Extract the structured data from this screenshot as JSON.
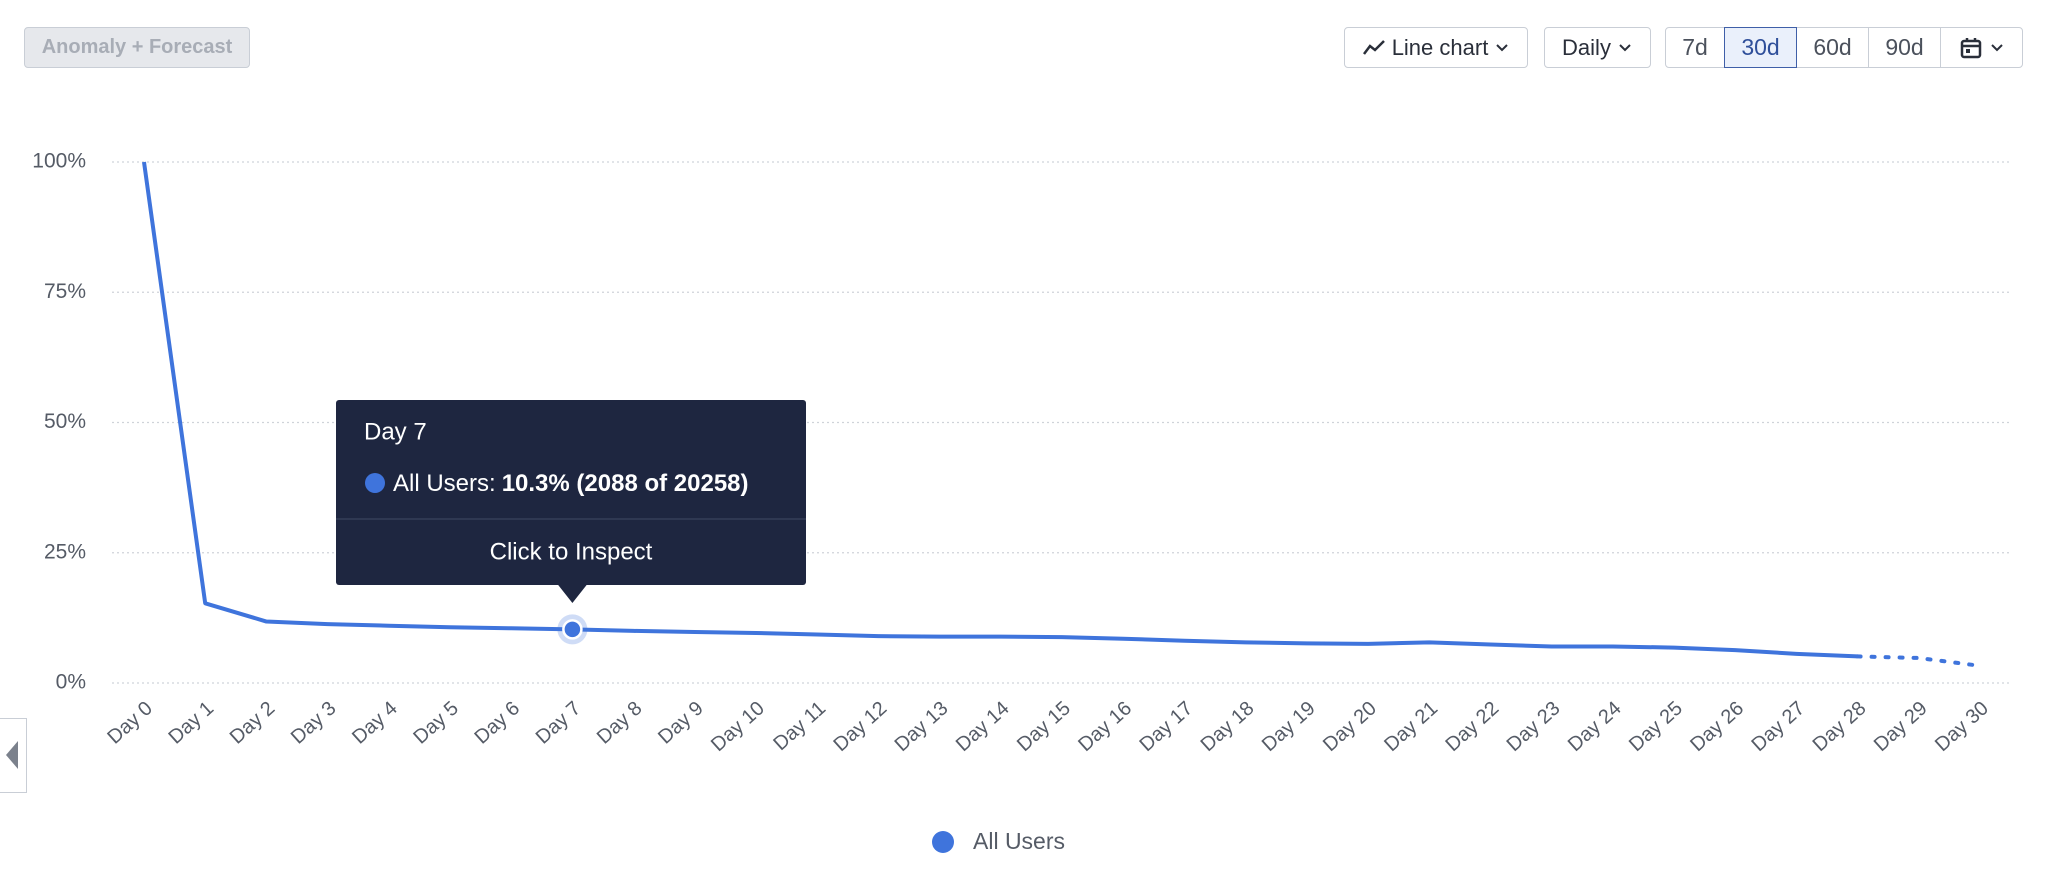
{
  "toolbar": {
    "anomaly": "Anomaly + Forecast",
    "chart_type": "Line chart",
    "interval": "Daily",
    "ranges": [
      "7d",
      "30d",
      "60d",
      "90d"
    ],
    "active_range": 1
  },
  "chart_data": {
    "type": "line",
    "categories": [
      "Day 0",
      "Day 1",
      "Day 2",
      "Day 3",
      "Day 4",
      "Day 5",
      "Day 6",
      "Day 7",
      "Day 8",
      "Day 9",
      "Day 10",
      "Day 11",
      "Day 12",
      "Day 13",
      "Day 14",
      "Day 15",
      "Day 16",
      "Day 17",
      "Day 18",
      "Day 19",
      "Day 20",
      "Day 21",
      "Day 22",
      "Day 23",
      "Day 24",
      "Day 25",
      "Day 26",
      "Day 27",
      "Day 28",
      "Day 29",
      "Day 30"
    ],
    "series": [
      {
        "name": "All Users",
        "color": "#3f74dc",
        "values": [
          100,
          15.3,
          11.8,
          11.3,
          11.0,
          10.7,
          10.5,
          10.3,
          10.0,
          9.8,
          9.6,
          9.3,
          9.0,
          8.9,
          8.9,
          8.8,
          8.5,
          8.1,
          7.8,
          7.6,
          7.5,
          7.8,
          7.4,
          7.0,
          7.0,
          6.8,
          6.3,
          5.6,
          5.1,
          4.8,
          3.3
        ]
      }
    ],
    "dotted_from": 28,
    "ylim": [
      0,
      100
    ],
    "yticks": [
      {
        "value": 0,
        "label": "0%"
      },
      {
        "value": 25,
        "label": "25%"
      },
      {
        "value": 50,
        "label": "50%"
      },
      {
        "value": 75,
        "label": "75%"
      },
      {
        "value": 100,
        "label": "100%"
      }
    ],
    "grid": true,
    "tooltip": {
      "index": 7,
      "title": "Day 7",
      "series": "All Users:",
      "value": "10.3% (2088 of 20258)",
      "action": "Click to Inspect"
    }
  }
}
